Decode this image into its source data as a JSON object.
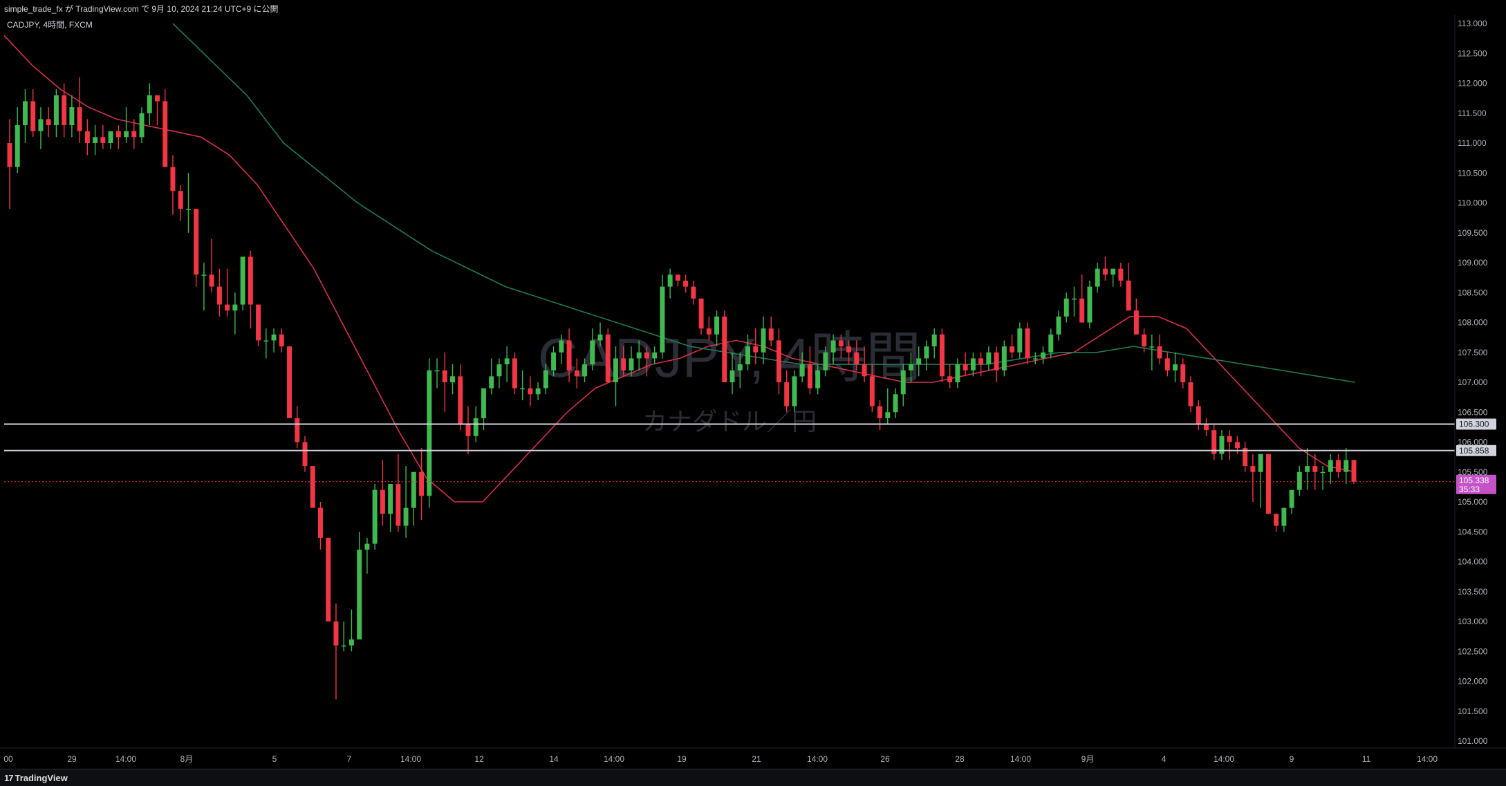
{
  "publish_line": "simple_trade_fx が TradingView.com で 9月 10, 2024 21:24 UTC+9 に公開",
  "symbol_line": "CADJPY, 4時間, FXCM",
  "watermark": {
    "symbol": "CADJPY, 4時間",
    "name": "カナダドル／円"
  },
  "brand": "TradingView",
  "colors": {
    "up": "#26a69a",
    "up_body": "#3fb950",
    "down": "#f23645",
    "ma_fast": "#d6334a",
    "ma_slow": "#1f7a5c",
    "hline": "#d1d4dc",
    "price_tag": "#c553c8"
  },
  "chart_data": {
    "type": "candlestick",
    "symbol": "CADJPY",
    "timeframe": "4時間",
    "source": "FXCM",
    "ylim": [
      101.0,
      113.0
    ],
    "y_ticks": [
      "113.000",
      "112.500",
      "112.000",
      "111.500",
      "111.000",
      "110.500",
      "110.000",
      "109.500",
      "109.000",
      "108.500",
      "108.000",
      "107.500",
      "107.000",
      "106.500",
      "106.000",
      "105.500",
      "105.000",
      "104.500",
      "104.000",
      "103.500",
      "103.000",
      "102.500",
      "102.000",
      "101.500",
      "101.000"
    ],
    "x_ticks": [
      "00",
      "29",
      "14:00",
      "8月",
      "5",
      "7",
      "14:00",
      "12",
      "14",
      "14:00",
      "19",
      "21",
      "14:00",
      "26",
      "28",
      "14:00",
      "9月",
      "4",
      "14:00",
      "9",
      "11",
      "14:00"
    ],
    "horizontal_lines": [
      {
        "label": "106.300",
        "value": 106.3
      },
      {
        "label": "105.858",
        "value": 105.858
      }
    ],
    "current_price": {
      "label": "105.338",
      "countdown": "35:33",
      "value": 105.338
    },
    "candles": [
      [
        111.0,
        111.4,
        109.9,
        110.6
      ],
      [
        110.6,
        111.6,
        110.5,
        111.3
      ],
      [
        111.3,
        111.9,
        111.0,
        111.7
      ],
      [
        111.7,
        111.9,
        111.1,
        111.2
      ],
      [
        111.2,
        111.6,
        110.9,
        111.4
      ],
      [
        111.4,
        111.6,
        111.1,
        111.3
      ],
      [
        111.3,
        111.9,
        111.1,
        111.8
      ],
      [
        111.8,
        112.0,
        111.1,
        111.3
      ],
      [
        111.3,
        111.8,
        111.1,
        111.6
      ],
      [
        111.6,
        112.1,
        111.0,
        111.2
      ],
      [
        111.2,
        111.4,
        110.8,
        111.0
      ],
      [
        111.0,
        111.3,
        110.8,
        111.1
      ],
      [
        111.1,
        111.3,
        110.9,
        111.0
      ],
      [
        111.0,
        111.2,
        110.9,
        111.2
      ],
      [
        111.2,
        111.3,
        110.9,
        111.1
      ],
      [
        111.1,
        111.6,
        111.0,
        111.2
      ],
      [
        111.2,
        111.4,
        110.9,
        111.1
      ],
      [
        111.1,
        111.6,
        111.0,
        111.5
      ],
      [
        111.5,
        112.0,
        111.3,
        111.8
      ],
      [
        111.8,
        111.8,
        111.3,
        111.7
      ],
      [
        111.7,
        111.9,
        110.6,
        110.6
      ],
      [
        110.6,
        110.8,
        109.8,
        110.2
      ],
      [
        110.2,
        110.3,
        109.7,
        109.9
      ],
      [
        109.9,
        110.5,
        109.5,
        109.9
      ],
      [
        109.9,
        109.9,
        108.6,
        108.8
      ],
      [
        108.8,
        109.0,
        108.2,
        108.8
      ],
      [
        108.8,
        109.4,
        108.5,
        108.6
      ],
      [
        108.6,
        108.9,
        108.1,
        108.3
      ],
      [
        108.3,
        108.9,
        108.1,
        108.2
      ],
      [
        108.2,
        108.5,
        107.8,
        108.3
      ],
      [
        108.3,
        109.1,
        108.2,
        109.1
      ],
      [
        109.1,
        109.2,
        107.9,
        108.3
      ],
      [
        108.3,
        108.3,
        107.6,
        107.7
      ],
      [
        107.7,
        107.9,
        107.4,
        107.7
      ],
      [
        107.7,
        107.9,
        107.5,
        107.8
      ],
      [
        107.8,
        107.9,
        107.5,
        107.6
      ],
      [
        107.6,
        107.6,
        106.5,
        106.4
      ],
      [
        106.4,
        106.6,
        105.9,
        106.0
      ],
      [
        106.0,
        106.1,
        105.5,
        105.6
      ],
      [
        105.6,
        105.6,
        104.9,
        104.9
      ],
      [
        104.9,
        105.0,
        104.2,
        104.4
      ],
      [
        104.4,
        104.4,
        103.0,
        103.0
      ],
      [
        103.0,
        103.3,
        101.7,
        102.6
      ],
      [
        102.6,
        103.0,
        102.5,
        102.6
      ],
      [
        102.6,
        103.2,
        102.5,
        102.7
      ],
      [
        102.7,
        104.5,
        102.7,
        104.2
      ],
      [
        104.2,
        104.4,
        103.8,
        104.3
      ],
      [
        104.3,
        105.3,
        104.2,
        105.2
      ],
      [
        105.2,
        105.7,
        104.6,
        104.8
      ],
      [
        104.8,
        105.3,
        104.5,
        105.3
      ],
      [
        105.3,
        105.8,
        104.5,
        104.6
      ],
      [
        104.6,
        105.6,
        104.4,
        104.9
      ],
      [
        104.9,
        105.5,
        104.6,
        105.5
      ],
      [
        105.5,
        105.9,
        104.7,
        105.1
      ],
      [
        105.1,
        107.4,
        104.9,
        107.2
      ],
      [
        107.2,
        107.4,
        106.9,
        107.2
      ],
      [
        107.2,
        107.5,
        106.5,
        107.0
      ],
      [
        107.0,
        107.3,
        106.8,
        107.1
      ],
      [
        107.1,
        107.3,
        106.2,
        106.3
      ],
      [
        106.3,
        106.6,
        105.8,
        106.1
      ],
      [
        106.1,
        106.6,
        106.0,
        106.4
      ],
      [
        106.4,
        106.9,
        106.2,
        106.9
      ],
      [
        106.9,
        107.4,
        106.8,
        107.1
      ],
      [
        107.1,
        107.4,
        106.9,
        107.3
      ],
      [
        107.3,
        107.6,
        107.0,
        107.4
      ],
      [
        107.4,
        107.5,
        106.8,
        106.9
      ],
      [
        106.9,
        107.2,
        106.7,
        106.9
      ],
      [
        106.9,
        107.1,
        106.6,
        106.8
      ],
      [
        106.8,
        107.0,
        106.7,
        106.9
      ],
      [
        106.9,
        107.3,
        106.8,
        107.2
      ],
      [
        107.2,
        107.6,
        107.1,
        107.5
      ],
      [
        107.5,
        107.8,
        107.3,
        107.7
      ],
      [
        107.7,
        107.9,
        107.0,
        107.2
      ],
      [
        107.2,
        107.4,
        106.9,
        107.1
      ],
      [
        107.1,
        107.4,
        107.0,
        107.3
      ],
      [
        107.3,
        107.9,
        107.2,
        107.7
      ],
      [
        107.7,
        108.0,
        107.6,
        107.8
      ],
      [
        107.8,
        107.9,
        107.0,
        107.0
      ],
      [
        107.0,
        107.6,
        106.6,
        107.4
      ],
      [
        107.4,
        107.6,
        107.1,
        107.2
      ],
      [
        107.2,
        107.6,
        107.1,
        107.4
      ],
      [
        107.4,
        107.7,
        107.2,
        107.5
      ],
      [
        107.5,
        107.6,
        107.1,
        107.4
      ],
      [
        107.4,
        107.6,
        107.3,
        107.5
      ],
      [
        107.5,
        108.8,
        107.4,
        108.6
      ],
      [
        108.6,
        108.9,
        108.4,
        108.8
      ],
      [
        108.8,
        108.8,
        108.6,
        108.7
      ],
      [
        108.7,
        108.8,
        108.5,
        108.6
      ],
      [
        108.6,
        108.7,
        108.3,
        108.4
      ],
      [
        108.4,
        108.4,
        107.8,
        107.9
      ],
      [
        107.9,
        108.1,
        107.7,
        107.8
      ],
      [
        107.8,
        108.2,
        107.6,
        108.1
      ],
      [
        108.1,
        108.2,
        107.0,
        107.0
      ],
      [
        107.0,
        107.5,
        106.8,
        107.2
      ],
      [
        107.2,
        107.5,
        106.9,
        107.3
      ],
      [
        107.3,
        107.8,
        107.2,
        107.6
      ],
      [
        107.6,
        107.9,
        107.3,
        107.5
      ],
      [
        107.5,
        108.1,
        107.3,
        107.9
      ],
      [
        107.9,
        108.1,
        107.6,
        107.7
      ],
      [
        107.7,
        107.9,
        106.8,
        107.0
      ],
      [
        107.0,
        107.2,
        106.5,
        106.6
      ],
      [
        106.6,
        107.2,
        106.5,
        107.1
      ],
      [
        107.1,
        107.5,
        107.0,
        107.3
      ],
      [
        107.3,
        107.6,
        106.8,
        106.9
      ],
      [
        106.9,
        107.3,
        106.8,
        107.2
      ],
      [
        107.2,
        107.6,
        107.1,
        107.5
      ],
      [
        107.5,
        107.8,
        107.3,
        107.7
      ],
      [
        107.7,
        107.8,
        107.4,
        107.6
      ],
      [
        107.6,
        107.7,
        107.3,
        107.5
      ],
      [
        107.5,
        107.7,
        107.2,
        107.3
      ],
      [
        107.3,
        107.6,
        107.0,
        107.1
      ],
      [
        107.1,
        107.3,
        106.5,
        106.6
      ],
      [
        106.6,
        106.7,
        106.2,
        106.4
      ],
      [
        106.4,
        106.9,
        106.3,
        106.5
      ],
      [
        106.5,
        106.9,
        106.4,
        106.8
      ],
      [
        106.8,
        107.3,
        106.6,
        107.2
      ],
      [
        107.2,
        107.5,
        107.0,
        107.3
      ],
      [
        107.3,
        107.6,
        107.1,
        107.4
      ],
      [
        107.4,
        107.7,
        107.2,
        107.6
      ],
      [
        107.6,
        107.9,
        107.4,
        107.8
      ],
      [
        107.8,
        107.9,
        107.0,
        107.1
      ],
      [
        107.1,
        107.3,
        106.9,
        107.0
      ],
      [
        107.0,
        107.4,
        106.9,
        107.3
      ],
      [
        107.3,
        107.5,
        107.1,
        107.2
      ],
      [
        107.2,
        107.5,
        107.1,
        107.4
      ],
      [
        107.4,
        107.5,
        107.1,
        107.3
      ],
      [
        107.3,
        107.6,
        107.2,
        107.5
      ],
      [
        107.5,
        107.6,
        107.0,
        107.2
      ],
      [
        107.2,
        107.7,
        107.1,
        107.6
      ],
      [
        107.6,
        107.8,
        107.4,
        107.5
      ],
      [
        107.5,
        108.0,
        107.4,
        107.9
      ],
      [
        107.9,
        108.0,
        107.3,
        107.4
      ],
      [
        107.4,
        107.5,
        107.3,
        107.4
      ],
      [
        107.4,
        107.6,
        107.3,
        107.5
      ],
      [
        107.5,
        107.9,
        107.4,
        107.8
      ],
      [
        107.8,
        108.2,
        107.7,
        108.1
      ],
      [
        108.1,
        108.5,
        108.0,
        108.4
      ],
      [
        108.4,
        108.6,
        108.1,
        108.4
      ],
      [
        108.4,
        108.8,
        108.0,
        108.0
      ],
      [
        108.0,
        108.7,
        107.9,
        108.6
      ],
      [
        108.6,
        109.0,
        108.5,
        108.9
      ],
      [
        108.9,
        109.1,
        108.7,
        108.8
      ],
      [
        108.8,
        108.9,
        108.6,
        108.9
      ],
      [
        108.9,
        109.0,
        108.6,
        108.7
      ],
      [
        108.7,
        109.0,
        108.2,
        108.2
      ],
      [
        108.2,
        108.4,
        107.8,
        107.8
      ],
      [
        107.8,
        107.9,
        107.5,
        107.6
      ],
      [
        107.6,
        107.8,
        107.2,
        107.6
      ],
      [
        107.6,
        107.8,
        107.3,
        107.4
      ],
      [
        107.4,
        107.5,
        107.1,
        107.2
      ],
      [
        107.2,
        107.5,
        107.0,
        107.3
      ],
      [
        107.3,
        107.4,
        106.9,
        107.0
      ],
      [
        107.0,
        107.1,
        106.5,
        106.6
      ],
      [
        106.6,
        106.7,
        106.2,
        106.3
      ],
      [
        106.3,
        106.4,
        106.1,
        106.2
      ],
      [
        106.2,
        106.3,
        105.7,
        105.8
      ],
      [
        105.8,
        106.2,
        105.7,
        106.1
      ],
      [
        106.1,
        106.2,
        105.7,
        106.0
      ],
      [
        106.0,
        106.1,
        105.8,
        105.9
      ],
      [
        105.9,
        106.0,
        105.5,
        105.6
      ],
      [
        105.6,
        105.8,
        105.0,
        105.5
      ],
      [
        105.5,
        105.8,
        104.9,
        105.8
      ],
      [
        105.8,
        105.8,
        104.8,
        104.8
      ],
      [
        104.8,
        104.8,
        104.5,
        104.6
      ],
      [
        104.6,
        104.9,
        104.5,
        104.9
      ],
      [
        104.9,
        105.2,
        104.8,
        105.2
      ],
      [
        105.2,
        105.6,
        105.1,
        105.5
      ],
      [
        105.5,
        105.9,
        105.2,
        105.6
      ],
      [
        105.6,
        105.8,
        105.2,
        105.5
      ],
      [
        105.5,
        105.6,
        105.2,
        105.5
      ],
      [
        105.5,
        105.8,
        105.3,
        105.7
      ],
      [
        105.7,
        105.8,
        105.4,
        105.5
      ],
      [
        105.5,
        105.9,
        105.3,
        105.7
      ],
      [
        105.7,
        105.7,
        105.3,
        105.338
      ]
    ],
    "ma_fast": [
      112.8,
      112.3,
      111.9,
      111.6,
      111.4,
      111.3,
      111.2,
      111.1,
      110.8,
      110.3,
      109.6,
      108.9,
      108.0,
      107.1,
      106.2,
      105.4,
      105.0,
      105.0,
      105.5,
      106.0,
      106.5,
      106.9,
      107.1,
      107.3,
      107.4,
      107.6,
      107.7,
      107.6,
      107.4,
      107.3,
      107.2,
      107.1,
      107.0,
      107.0,
      107.1,
      107.2,
      107.3,
      107.4,
      107.5,
      107.8,
      108.1,
      108.1,
      107.9,
      107.4,
      106.9,
      106.4,
      105.9,
      105.6,
      105.5
    ],
    "ma_slow": [
      113.0,
      112.4,
      111.8,
      111.0,
      110.5,
      110.0,
      109.6,
      109.2,
      108.9,
      108.6,
      108.4,
      108.2,
      108.0,
      107.8,
      107.6,
      107.5,
      107.4,
      107.3,
      107.3,
      107.3,
      107.3,
      107.3,
      107.3,
      107.4,
      107.5,
      107.5,
      107.6,
      107.5,
      107.4,
      107.3,
      107.2,
      107.1,
      107.0
    ]
  }
}
